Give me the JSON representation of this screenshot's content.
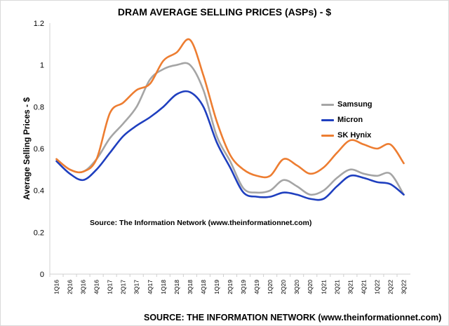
{
  "chart_data": {
    "type": "line",
    "title": "DRAM AVERAGE SELLING PRICES (ASPs) - $",
    "ylabel": "Average Selling Prices - $",
    "xlabel": "",
    "ylim": [
      0,
      1.2
    ],
    "yticks": [
      "0",
      "0.2",
      "0.4",
      "0.6",
      "0.8",
      "1",
      "1.2"
    ],
    "yticks_values": [
      0,
      0.2,
      0.4,
      0.6,
      0.8,
      1,
      1.2
    ],
    "categories": [
      "1Q16",
      "2Q16",
      "3Q16",
      "4Q16",
      "1Q17",
      "2Q17",
      "3Q17",
      "4Q17",
      "1Q18",
      "2Q18",
      "3Q18",
      "4Q18",
      "1Q19",
      "2Q19",
      "3Q19",
      "4Q19",
      "1Q20",
      "2Q20",
      "3Q20",
      "4Q20",
      "1Q21",
      "2Q21",
      "3Q21",
      "4Q21",
      "1Q22",
      "2Q22",
      "3Q22"
    ],
    "grid": false,
    "legend_position": "right",
    "series": [
      {
        "name": "Samsung",
        "color": "#a5a5a5",
        "values": [
          0.55,
          0.5,
          0.49,
          0.55,
          0.65,
          0.72,
          0.8,
          0.93,
          0.98,
          1.0,
          1.0,
          0.88,
          0.66,
          0.54,
          0.41,
          0.39,
          0.4,
          0.45,
          0.42,
          0.38,
          0.4,
          0.46,
          0.5,
          0.48,
          0.47,
          0.48,
          0.38
        ]
      },
      {
        "name": "Micron",
        "color": "#1f3fbf",
        "values": [
          0.54,
          0.48,
          0.45,
          0.5,
          0.58,
          0.66,
          0.71,
          0.75,
          0.8,
          0.86,
          0.87,
          0.8,
          0.63,
          0.51,
          0.39,
          0.37,
          0.37,
          0.39,
          0.38,
          0.36,
          0.36,
          0.42,
          0.47,
          0.46,
          0.44,
          0.43,
          0.38
        ]
      },
      {
        "name": "SK Hynix",
        "color": "#ed7d31",
        "values": [
          0.55,
          0.5,
          0.49,
          0.55,
          0.77,
          0.82,
          0.88,
          0.91,
          1.02,
          1.06,
          1.12,
          0.95,
          0.73,
          0.57,
          0.5,
          0.47,
          0.47,
          0.55,
          0.52,
          0.48,
          0.51,
          0.58,
          0.64,
          0.62,
          0.6,
          0.62,
          0.53
        ]
      }
    ],
    "annotations": [
      "Source: The Information Network (www.theinformationnet.com)"
    ]
  },
  "footer_source": "SOURCE: THE INFORMATION NETWORK (www.theinformationnet.com)"
}
